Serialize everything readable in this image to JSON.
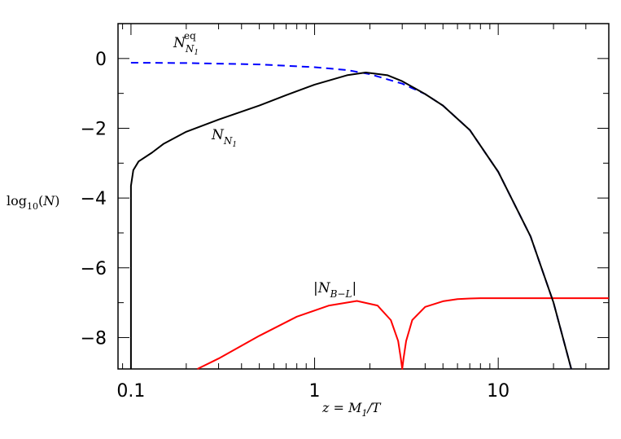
{
  "chart_data": {
    "type": "line",
    "xscale": "log",
    "xlim": [
      0.085,
      40
    ],
    "ylim": [
      -8.9,
      1
    ],
    "x_ticks": [
      0.1,
      1,
      10
    ],
    "x_tick_labels": [
      "0.1",
      "1",
      "10"
    ],
    "y_ticks": [
      0,
      -2,
      -4,
      -6,
      -8
    ],
    "y_tick_labels": [
      "0",
      "−2",
      "−4",
      "−6",
      "−8"
    ],
    "xlabel": "z = M₁/T",
    "ylabel": "log₁₀(N)",
    "grid": false,
    "legend": "none",
    "series": [
      {
        "name": "N_N1^eq",
        "style": "dashed",
        "color": "#0000ff",
        "x": [
          0.1,
          0.2,
          0.5,
          1.0,
          1.5,
          2.0,
          3.0,
          4.0,
          5.0,
          7.0,
          10.0,
          15.0,
          20.0,
          25.0
        ],
        "y": [
          -0.12,
          -0.13,
          -0.17,
          -0.25,
          -0.33,
          -0.45,
          -0.72,
          -1.02,
          -1.35,
          -2.05,
          -3.25,
          -5.1,
          -7.0,
          -9.0
        ]
      },
      {
        "name": "N_N1",
        "style": "solid",
        "color": "#000000",
        "x": [
          0.1,
          0.1,
          0.103,
          0.11,
          0.13,
          0.15,
          0.2,
          0.3,
          0.5,
          0.7,
          1.0,
          1.5,
          1.9,
          2.5,
          3.0,
          4.0,
          5.0,
          7.0,
          10.0,
          15.0,
          20.0,
          25.0
        ],
        "y": [
          -9.0,
          -3.65,
          -3.2,
          -2.95,
          -2.7,
          -2.45,
          -2.1,
          -1.75,
          -1.35,
          -1.05,
          -0.75,
          -0.48,
          -0.4,
          -0.48,
          -0.65,
          -1.02,
          -1.35,
          -2.05,
          -3.25,
          -5.1,
          -7.0,
          -9.0
        ]
      },
      {
        "name": "|N_B-L|",
        "style": "solid",
        "color": "#ff0000",
        "x": [
          0.23,
          0.3,
          0.5,
          0.8,
          1.2,
          1.7,
          2.2,
          2.6,
          2.85,
          2.95,
          3.0,
          3.05,
          3.15,
          3.4,
          4.0,
          5.0,
          6.0,
          7.0,
          8.0,
          10.0,
          20.0,
          40.0
        ],
        "y": [
          -8.9,
          -8.6,
          -7.95,
          -7.4,
          -7.08,
          -6.95,
          -7.08,
          -7.5,
          -8.1,
          -8.6,
          -8.9,
          -8.6,
          -8.1,
          -7.5,
          -7.12,
          -6.96,
          -6.9,
          -6.88,
          -6.87,
          -6.87,
          -6.87,
          -6.87
        ]
      }
    ],
    "annotations": [
      {
        "id": "eq",
        "text": "N",
        "sub": "N",
        "subsub": "1",
        "sup": "eq"
      },
      {
        "id": "nn1",
        "text": "N",
        "sub": "N",
        "subsub": "1"
      },
      {
        "id": "nbl",
        "text": "|N",
        "sub": "B−L",
        "close": "|"
      }
    ]
  },
  "axis": {
    "xlabel_lhs": "z",
    "xlabel_eq": " = ",
    "xlabel_m": "M",
    "xlabel_m_sub": "1",
    "xlabel_rest": "/T",
    "ylabel_log": "log",
    "ylabel_sub": "10",
    "ylabel_open": "(",
    "ylabel_n": "N",
    "ylabel_close": ")"
  }
}
